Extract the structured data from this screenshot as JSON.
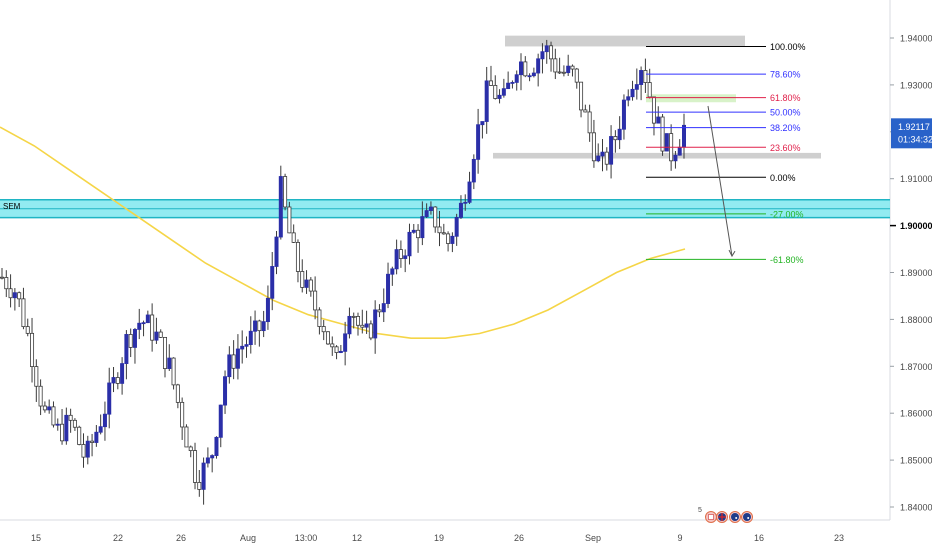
{
  "chart_data": {
    "type": "candlestick",
    "instrument_note": "",
    "y_axis": {
      "min": 1.834,
      "max": 1.9435,
      "ticks": [
        "1.94000",
        "1.93000",
        "1.92000",
        "1.91000",
        "1.90000",
        "1.89000",
        "1.88000",
        "1.87000",
        "1.86000",
        "1.85000",
        "1.84000"
      ],
      "current_price": "1.92117",
      "countdown": "01:34:32",
      "highlight_level": "1.90000",
      "current_price_value": 1.92117,
      "highlight_value": 1.9
    },
    "x_axis": {
      "tick_labels": [
        "15",
        "22",
        "26",
        "Aug",
        "13:00",
        "12",
        "19",
        "26",
        "Sep",
        "9",
        "16",
        "23"
      ]
    },
    "bar_path_ohlc_closes": [
      1.889,
      1.886,
      1.875,
      1.86,
      1.856,
      1.858,
      1.85,
      1.858,
      1.866,
      1.876,
      1.88,
      1.877,
      1.87,
      1.858,
      1.846,
      1.85,
      1.868,
      1.874,
      1.876,
      1.88,
      1.908,
      1.893,
      1.885,
      1.88,
      1.87,
      1.884,
      1.875,
      1.882,
      1.89,
      1.896,
      1.9,
      1.902,
      1.896,
      1.904,
      1.918,
      1.93,
      1.926,
      1.935,
      1.934,
      1.938,
      1.933,
      1.932,
      1.922,
      1.912,
      1.918,
      1.93,
      1.935,
      1.922,
      1.915,
      1.921
    ],
    "moving_average": {
      "color": "#f5d547",
      "values": [
        1.921,
        1.917,
        1.912,
        1.907,
        1.902,
        1.897,
        1.892,
        1.888,
        1.884,
        1.881,
        1.879,
        1.877,
        1.876,
        1.876,
        1.877,
        1.879,
        1.882,
        1.886,
        1.89,
        1.893,
        1.895
      ]
    },
    "fibonacci": {
      "levels": [
        {
          "label": "100.00%",
          "value": 1.9382,
          "color": "#000000"
        },
        {
          "label": "78.60%",
          "value": 1.9323,
          "color": "#3030ff"
        },
        {
          "label": "61.80%",
          "value": 1.9273,
          "color": "#e0204a"
        },
        {
          "label": "50.00%",
          "value": 1.9242,
          "color": "#3030ff"
        },
        {
          "label": "38.20%",
          "value": 1.9209,
          "color": "#3030ff"
        },
        {
          "label": "23.60%",
          "value": 1.9167,
          "color": "#e0204a"
        },
        {
          "label": "0.00%",
          "value": 1.9103,
          "color": "#000000"
        },
        {
          "label": "-27.00%",
          "value": 1.9025,
          "color": "#22b322"
        },
        {
          "label": "-61.80%",
          "value": 1.8928,
          "color": "#22b322"
        }
      ]
    },
    "zones": [
      {
        "name": "SEM",
        "color": "#7fe8ee",
        "low": 1.9017,
        "high": 1.9055
      }
    ],
    "icons": [
      "calendar-event-icon",
      "uk-flag-icon",
      "au-flag-icon",
      "au-flag-icon"
    ],
    "event_badge": "5"
  }
}
